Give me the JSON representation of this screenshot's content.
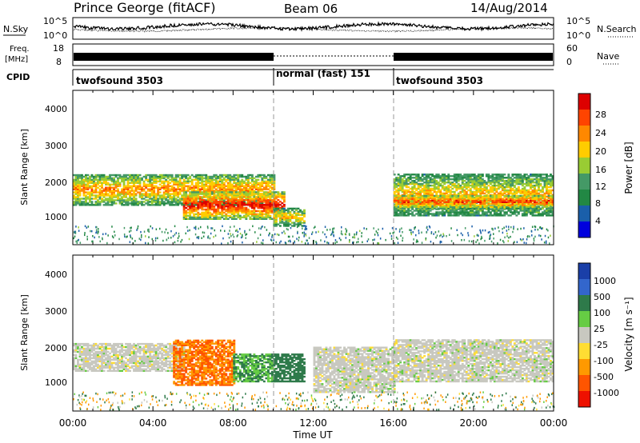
{
  "header": {
    "station": "Prince George (fitACF)",
    "beam": "Beam 06",
    "date": "14/Aug/2014"
  },
  "noise_panel": {
    "left_label": "N.Sky",
    "right_label": "N.Search",
    "left_ticks": [
      "10^5",
      "10^0"
    ],
    "right_ticks": [
      "10^5",
      "10^0"
    ]
  },
  "freq_panel": {
    "left_label_top": "Freq.",
    "left_label_unit": "[MHz]",
    "right_label": "Nave",
    "left_ticks": [
      "18",
      "8"
    ],
    "right_ticks": [
      "60",
      "0"
    ]
  },
  "cpid_panel": {
    "label": "CPID",
    "segments": [
      {
        "label": "twofsound 3503",
        "start_hour": 0,
        "end_hour": 10
      },
      {
        "label": "normal (fast) 151",
        "start_hour": 10,
        "end_hour": 16
      },
      {
        "label": "twofsound 3503",
        "start_hour": 16,
        "end_hour": 24
      }
    ]
  },
  "power_panel": {
    "ylabel": "Slant Range [km]",
    "yticks": [
      "4000",
      "3000",
      "2000",
      "1000"
    ],
    "cbar_label": "Power [dB]",
    "cbar_ticks": [
      "28",
      "24",
      "20",
      "16",
      "12",
      "8",
      "4"
    ],
    "cbar_colors": [
      "#dd0000",
      "#ff4400",
      "#ff8800",
      "#ffcc00",
      "#99cc33",
      "#449966",
      "#228844",
      "#1a5faa",
      "#0000dd"
    ]
  },
  "velocity_panel": {
    "ylabel": "Slant Range [km]",
    "yticks": [
      "4000",
      "3000",
      "2000",
      "1000"
    ],
    "cbar_label": "Velocity [m s⁻¹]",
    "cbar_ticks": [
      "1000",
      "500",
      "100",
      "25",
      "-25",
      "-100",
      "-500",
      "-1000"
    ],
    "cbar_colors": [
      "#1a3fa8",
      "#3366cc",
      "#2e7a4a",
      "#66cc44",
      "#c8c8c0",
      "#ffdd33",
      "#ff9900",
      "#ff5500",
      "#ee1100"
    ]
  },
  "x_axis": {
    "label": "Time UT",
    "ticks": [
      "00:00",
      "04:00",
      "08:00",
      "12:00",
      "16:00",
      "20:00",
      "00:00"
    ]
  },
  "chart_data": {
    "type": "heatmap",
    "title": "Prince George (fitACF)",
    "subtitle": "Beam 06",
    "xlabel": "Time UT",
    "ylabel": "Slant Range [km]",
    "xlim_hours": [
      0,
      24
    ],
    "ylim_km": [
      180,
      4600
    ],
    "panels": [
      {
        "name": "Power",
        "colorbar": "Power [dB]",
        "scale": [
          0,
          30
        ],
        "regions": [
          {
            "t0": 0.0,
            "t1": 10.0,
            "r0": 1300,
            "r1": 2200,
            "value": 22
          },
          {
            "t0": 5.5,
            "t1": 10.5,
            "r0": 900,
            "r1": 1700,
            "value": 28
          },
          {
            "t0": 10.0,
            "t1": 11.5,
            "r0": 700,
            "r1": 1200,
            "value": 20
          },
          {
            "t0": 16.0,
            "t1": 24.0,
            "r0": 1000,
            "r1": 2200,
            "value": 20
          },
          {
            "t0": 16.0,
            "t1": 24.0,
            "r0": 1200,
            "r1": 1600,
            "value": 26
          }
        ]
      },
      {
        "name": "Velocity",
        "colorbar": "Velocity [m s⁻¹]",
        "scale": [
          -1000,
          1000
        ],
        "regions": [
          {
            "t0": 0.0,
            "t1": 5.5,
            "r0": 1300,
            "r1": 2100,
            "value": 0
          },
          {
            "t0": 5.0,
            "t1": 8.0,
            "r0": 900,
            "r1": 2200,
            "value": -300
          },
          {
            "t0": 8.0,
            "t1": 10.0,
            "r0": 1000,
            "r1": 1800,
            "value": 60
          },
          {
            "t0": 10.0,
            "t1": 11.5,
            "r0": 1000,
            "r1": 1800,
            "value": 100
          },
          {
            "t0": 12.0,
            "t1": 16.0,
            "r0": 700,
            "r1": 2000,
            "value": 0
          },
          {
            "t0": 16.0,
            "t1": 24.0,
            "r0": 1000,
            "r1": 2200,
            "value": 0
          }
        ]
      }
    ]
  }
}
